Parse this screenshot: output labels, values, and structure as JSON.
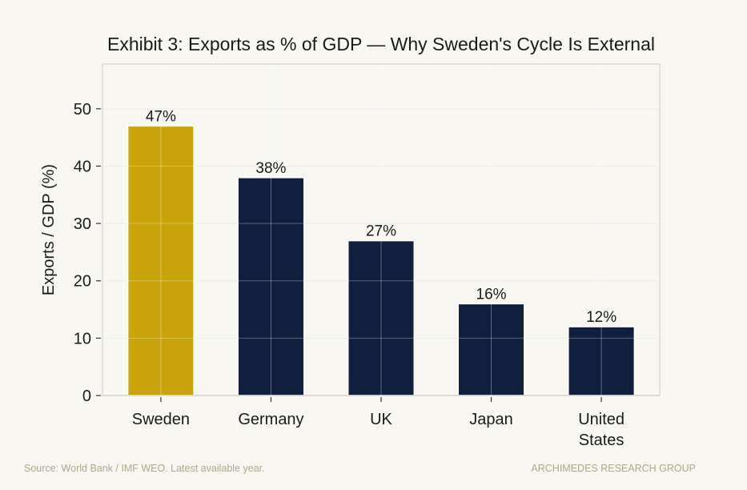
{
  "chart_data": {
    "type": "bar",
    "title": "Exhibit 3: Exports as % of GDP — Why Sweden's Cycle Is External",
    "xlabel": "",
    "ylabel": "Exports / GDP (%)",
    "categories": [
      "Sweden",
      "Germany",
      "UK",
      "Japan",
      "United States"
    ],
    "values": [
      47,
      38,
      27,
      16,
      12
    ],
    "data_labels": [
      "47%",
      "38%",
      "27%",
      "16%",
      "12%"
    ],
    "bar_colors": [
      "#c9a40a",
      "#0f1f3d",
      "#0f1f3d",
      "#0f1f3d",
      "#0f1f3d"
    ],
    "ylim": [
      0,
      57.8
    ],
    "yticks": [
      0,
      10,
      20,
      30,
      40,
      50
    ],
    "grid": true,
    "legend": "none"
  },
  "footer": {
    "source": "Source: World Bank / IMF WEO. Latest available year.",
    "brand": "ARCHIMEDES RESEARCH GROUP"
  },
  "colors": {
    "background": "#f8f7f2",
    "grid": "#e6e5df",
    "axis": "#d8d7cf",
    "footer_text": "#a9a98d"
  }
}
